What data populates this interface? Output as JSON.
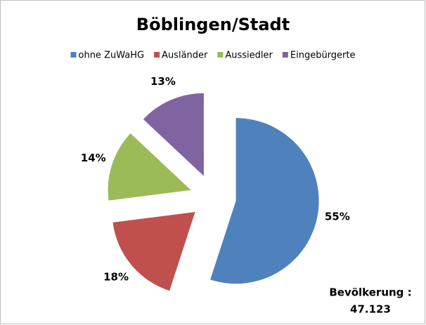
{
  "chart_data": {
    "type": "pie",
    "title": "Böblingen/Stadt",
    "categories": [
      "ohne ZuWaHG",
      "Ausländer",
      "Aussiedler",
      "Eingebürgerte"
    ],
    "values": [
      55,
      18,
      14,
      13
    ],
    "value_labels": [
      "55%",
      "18%",
      "14%",
      "13%"
    ],
    "colors": [
      "#4f81bd",
      "#c0504d",
      "#9bbb59",
      "#8064a2"
    ],
    "legend": "top",
    "annotation": [
      "Bevölkerung :",
      "47.123"
    ]
  }
}
